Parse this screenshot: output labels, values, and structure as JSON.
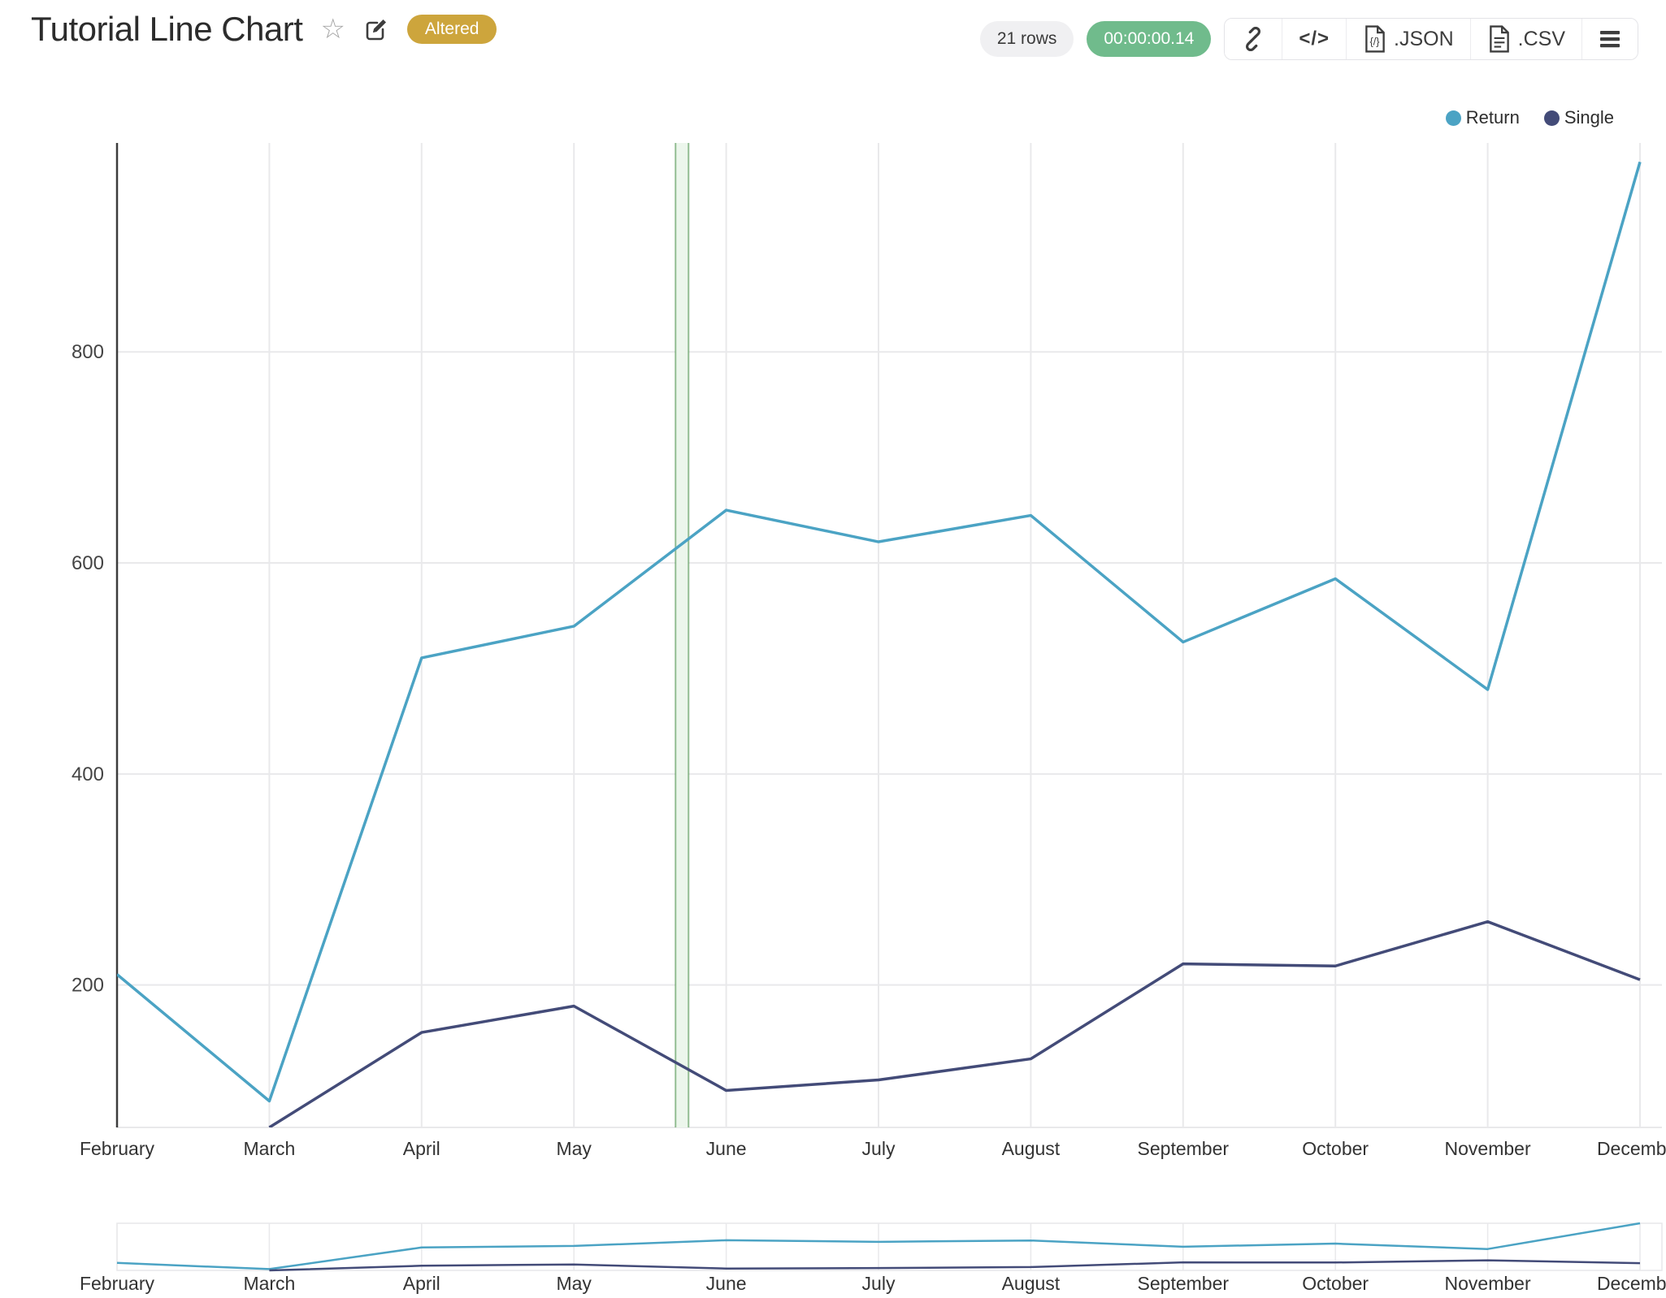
{
  "header": {
    "title": "Tutorial Line Chart",
    "altered_badge": "Altered",
    "rows_badge": "21 rows",
    "timer_badge": "00:00:00.14",
    "code_glyph": "</>",
    "export_json_label": ".JSON",
    "export_csv_label": ".CSV"
  },
  "icons": {
    "star": "☆"
  },
  "legend": {
    "items": [
      {
        "label": "Return",
        "color": "#4ba3c4"
      },
      {
        "label": "Single",
        "color": "#434b78"
      }
    ]
  },
  "colors": {
    "badge_gold": "#cda53c",
    "timer_green": "#70bb8c",
    "rows_gray": "#f0f0f2",
    "grid": "#e9e9eb",
    "axis": "#3c3c3c",
    "tick_text": "#444444",
    "band_fill": "#ecf6ec",
    "band_edge": "#5d9b5d"
  },
  "chart_data": {
    "type": "line",
    "title": "Tutorial Line Chart",
    "categories": [
      "February",
      "March",
      "April",
      "May",
      "June",
      "July",
      "August",
      "September",
      "October",
      "November",
      "December"
    ],
    "series": [
      {
        "name": "Return",
        "color": "#4ba3c4",
        "values": [
          210,
          90,
          510,
          540,
          650,
          620,
          645,
          525,
          585,
          480,
          980
        ]
      },
      {
        "name": "Single",
        "color": "#434b78",
        "values": [
          null,
          65,
          155,
          180,
          100,
          110,
          130,
          220,
          218,
          260,
          205
        ]
      }
    ],
    "yticks": [
      200,
      400,
      600,
      800
    ],
    "ylim": [
      65,
      998
    ],
    "xlabel": "",
    "ylabel": "",
    "grid": true,
    "legend_position": "top-right",
    "rangeslider": true,
    "annotation_band": {
      "after_month": "May",
      "fraction": 0.71
    }
  }
}
